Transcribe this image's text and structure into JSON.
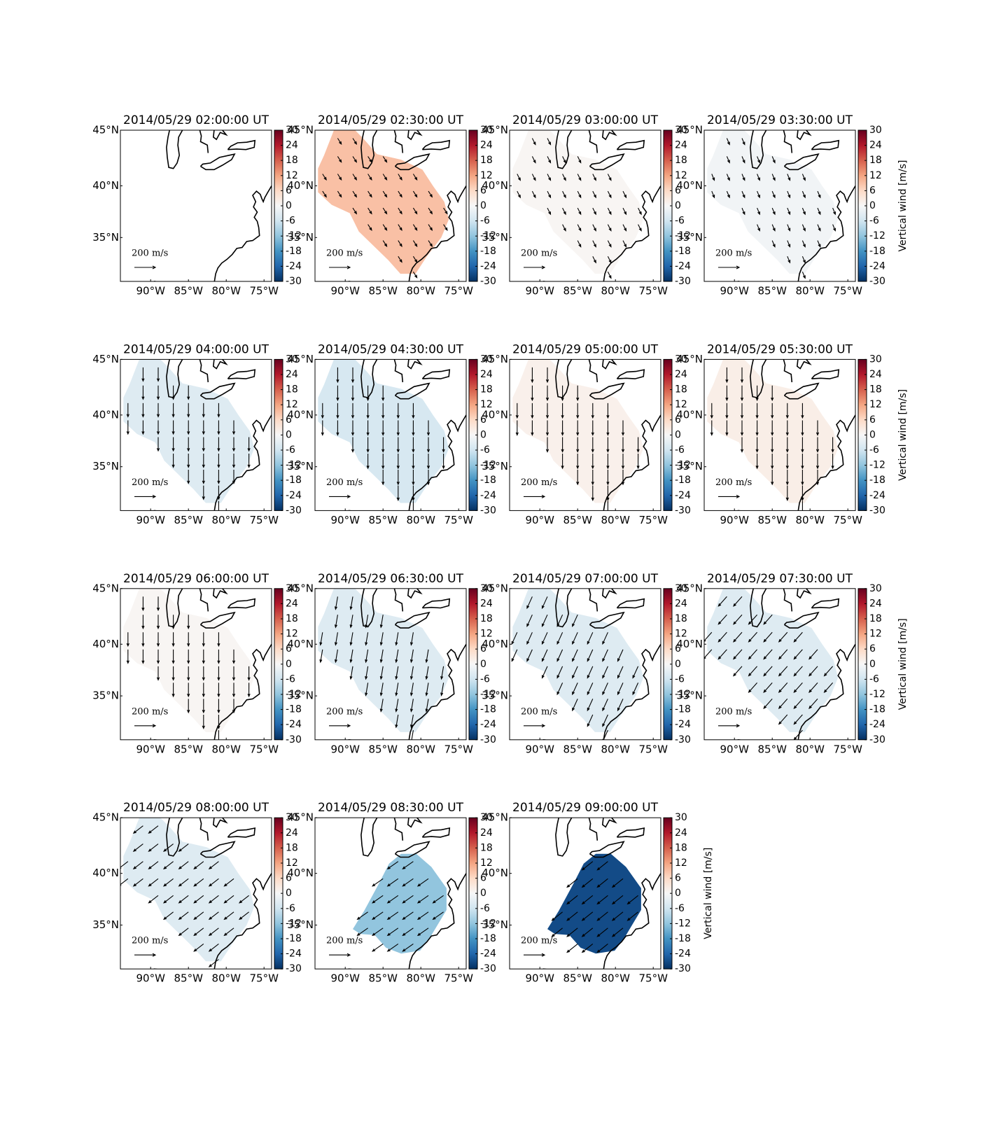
{
  "chart_data": {
    "type": "map",
    "projection": "mercator",
    "xlim": [
      -94,
      -74
    ],
    "ylim": [
      30.5,
      45
    ],
    "xticks": [
      {
        "value": -90,
        "label": "90°W"
      },
      {
        "value": -85,
        "label": "85°W"
      },
      {
        "value": -80,
        "label": "80°W"
      },
      {
        "value": -75,
        "label": "75°W"
      }
    ],
    "yticks": [
      {
        "value": 45,
        "label": "45°N"
      },
      {
        "value": 40,
        "label": "40°N"
      },
      {
        "value": 35,
        "label": "35°N"
      }
    ],
    "clim": [
      -30,
      30
    ],
    "cticks": [
      30,
      24,
      18,
      12,
      6,
      0,
      -6,
      -12,
      -18,
      -24,
      -30
    ],
    "colormap": [
      "#053061",
      "#2166ac",
      "#4393c3",
      "#92c5de",
      "#d1e5f0",
      "#f7f7f7",
      "#fddbc7",
      "#f4a582",
      "#d6604d",
      "#b2182b",
      "#67001f"
    ],
    "colorbar_label": "Vertical wind [m/s]",
    "quiver_key": {
      "value": 200,
      "label": "200 m/s"
    },
    "panels": [
      {
        "title": "2014/05/29 02:00:00 UT",
        "value": null,
        "wind": [
          null,
          null
        ]
      },
      {
        "title": "2014/05/29 02:30:00 UT",
        "value": 9,
        "wind": [
          35,
          -55
        ]
      },
      {
        "title": "2014/05/29 03:00:00 UT",
        "value": 0.5,
        "wind": [
          30,
          -60
        ]
      },
      {
        "title": "2014/05/29 03:30:00 UT",
        "value": -1,
        "wind": [
          25,
          -60
        ]
      },
      {
        "title": "2014/05/29 04:00:00 UT",
        "value": -4,
        "wind": [
          0,
          -130
        ]
      },
      {
        "title": "2014/05/29 04:30:00 UT",
        "value": -5,
        "wind": [
          0,
          -140
        ]
      },
      {
        "title": "2014/05/29 05:00:00 UT",
        "value": 1.5,
        "wind": [
          0,
          -140
        ]
      },
      {
        "title": "2014/05/29 05:30:00 UT",
        "value": 2,
        "wind": [
          0,
          -140
        ]
      },
      {
        "title": "2014/05/29 06:00:00 UT",
        "value": 0.5,
        "wind": [
          0,
          -130
        ]
      },
      {
        "title": "2014/05/29 06:30:00 UT",
        "value": -4,
        "wind": [
          -20,
          -120
        ]
      },
      {
        "title": "2014/05/29 07:00:00 UT",
        "value": -4,
        "wind": [
          -50,
          -110
        ]
      },
      {
        "title": "2014/05/29 07:30:00 UT",
        "value": -4,
        "wind": [
          -80,
          -90
        ]
      },
      {
        "title": "2014/05/29 08:00:00 UT",
        "value": -4,
        "wind": [
          -90,
          -70
        ]
      },
      {
        "title": "2014/05/29 08:30:00 UT",
        "value": -12,
        "wind": [
          -100,
          -70
        ]
      },
      {
        "title": "2014/05/29 09:00:00 UT",
        "value": -27,
        "wind": [
          -100,
          -80
        ]
      }
    ]
  }
}
